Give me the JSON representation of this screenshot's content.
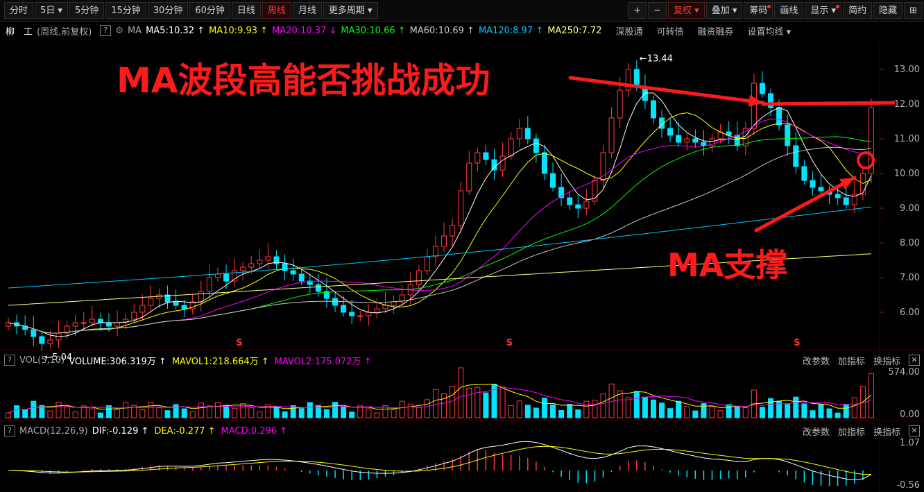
{
  "toolbar": {
    "periods": [
      "分时",
      "5日",
      "5分钟",
      "15分钟",
      "30分钟",
      "60分钟",
      "日线",
      "周线",
      "月线",
      "更多周期"
    ],
    "active_period": "周线",
    "right_tools": [
      "复权",
      "叠加",
      "筹码",
      "画线",
      "显示",
      "简约",
      "隐藏"
    ]
  },
  "header": {
    "stock_name": "柳　工",
    "mode": "(周线,前复权)",
    "ma_label": "MA",
    "ma_items": [
      {
        "text": "MA5:10.32 ↑",
        "color": "#ffffff"
      },
      {
        "text": "MA10:9.93 ↑",
        "color": "#ffff00"
      },
      {
        "text": "MA20:10.37 ↓",
        "color": "#ff00ff"
      },
      {
        "text": "MA30:10.66 ↑",
        "color": "#00ff00"
      },
      {
        "text": "MA60:10.69 ↑",
        "color": "#c8c8c8"
      },
      {
        "text": "MA120:8.97 ↑",
        "color": "#00c8ff"
      },
      {
        "text": "MA250:7.72",
        "color": "#ffff80"
      }
    ],
    "links": [
      "深股通",
      "可转债",
      "融资融券",
      "设置均线"
    ]
  },
  "annotations": {
    "top_text": "MA波段高能否挑战成功",
    "bottom_text": "MA支撑",
    "high_label": "13.44",
    "low_label": "5.04"
  },
  "vol_panel": {
    "name": "VOL(5,10)",
    "items": [
      {
        "text": "VOLUME:306.319万 ↑",
        "color": "#ffffff"
      },
      {
        "text": "MAVOL1:218.664万 ↑",
        "color": "#ffff00"
      },
      {
        "text": "MAVOL2:175.072万 ↑",
        "color": "#ff00ff"
      }
    ],
    "actions": [
      "改参数",
      "加指标",
      "换指标"
    ],
    "axis": [
      "574.00",
      "0.00"
    ]
  },
  "macd_panel": {
    "name": "MACD(12,26,9)",
    "items": [
      {
        "text": "DIF:-0.129 ↑",
        "color": "#ffffff"
      },
      {
        "text": "DEA:-0.277 ↑",
        "color": "#ffff00"
      },
      {
        "text": "MACD:0.296 ↑",
        "color": "#ff00ff"
      }
    ],
    "actions": [
      "改参数",
      "加指标",
      "换指标"
    ],
    "axis": [
      "1.07",
      "-0.56"
    ]
  },
  "chart_data": {
    "type": "candlestick",
    "price_axis": [
      13.0,
      12.0,
      11.0,
      10.0,
      9.0,
      8.0,
      7.0,
      6.0
    ],
    "ylim": [
      5.0,
      13.6
    ],
    "closes": [
      5.7,
      5.6,
      5.5,
      5.3,
      5.1,
      5.2,
      5.4,
      5.6,
      5.7,
      5.7,
      5.8,
      5.7,
      5.6,
      5.7,
      5.8,
      6.0,
      6.2,
      6.4,
      6.5,
      6.3,
      6.2,
      6.1,
      6.3,
      6.6,
      7.0,
      7.1,
      6.9,
      7.2,
      7.3,
      7.4,
      7.5,
      7.6,
      7.4,
      7.2,
      7.1,
      6.9,
      6.8,
      6.6,
      6.4,
      6.2,
      6.0,
      5.9,
      5.9,
      6.0,
      6.1,
      6.2,
      6.3,
      6.5,
      6.8,
      7.2,
      7.6,
      7.9,
      8.2,
      8.5,
      9.5,
      10.3,
      10.6,
      10.4,
      10.1,
      10.5,
      11.0,
      11.3,
      11.0,
      10.6,
      10.0,
      9.6,
      9.3,
      9.1,
      9.0,
      9.2,
      9.8,
      10.6,
      11.6,
      12.4,
      13.0,
      12.5,
      12.1,
      11.6,
      11.3,
      11.1,
      10.9,
      11.0,
      10.9,
      10.8,
      11.0,
      11.2,
      11.1,
      10.8,
      11.3,
      12.6,
      12.3,
      11.9,
      11.4,
      10.8,
      10.2,
      9.8,
      9.6,
      9.5,
      9.4,
      9.3,
      9.1,
      9.4,
      10.0,
      11.9
    ],
    "ma_series": [
      "MA5",
      "MA10",
      "MA20",
      "MA30",
      "MA60",
      "MA120",
      "MA250"
    ],
    "volume_max": 574.0,
    "macd_range": [
      -0.56,
      1.07
    ],
    "markers": [
      "S",
      "S",
      "S"
    ]
  }
}
